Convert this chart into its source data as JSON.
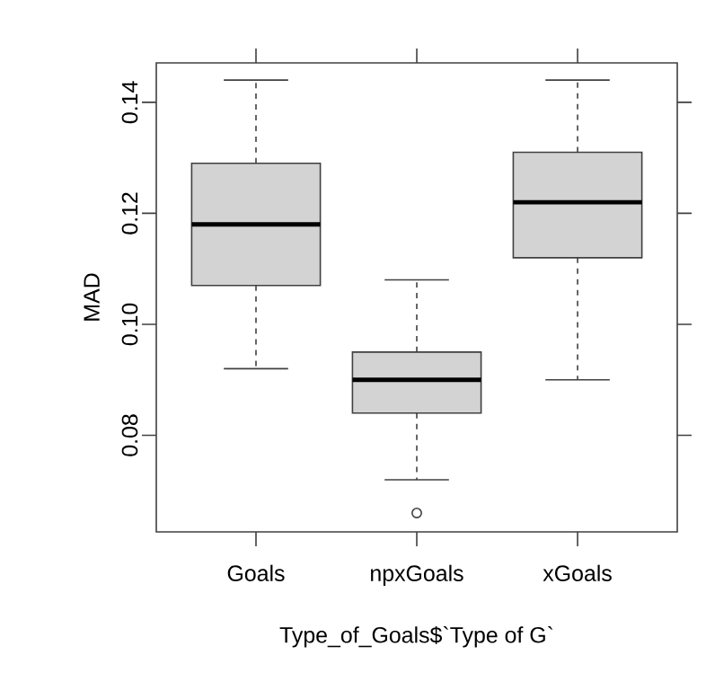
{
  "chart_data": {
    "type": "box",
    "xlabel": "Type_of_Goals$`Type of G`",
    "ylabel": "MAD",
    "categories": [
      "Goals",
      "npxGoals",
      "xGoals"
    ],
    "color": "#d3d3d3",
    "boxes": [
      {
        "low": 0.092,
        "q1": 0.107,
        "median": 0.118,
        "q3": 0.129,
        "high": 0.144
      },
      {
        "low": 0.072,
        "q1": 0.084,
        "median": 0.09,
        "q3": 0.095,
        "high": 0.108,
        "outliers": [
          0.066
        ]
      },
      {
        "low": 0.09,
        "q1": 0.112,
        "median": 0.122,
        "q3": 0.131,
        "high": 0.144
      }
    ],
    "ylim": [
      0.0626,
      0.1471
    ],
    "yticks": [
      0.08,
      {
        "value": 0.1,
        "label": "0.10"
      },
      0.12,
      0.14
    ],
    "grid": false
  }
}
